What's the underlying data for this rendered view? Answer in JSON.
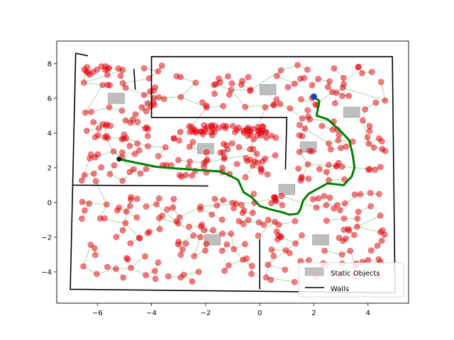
{
  "chart_data": {
    "type": "scatter",
    "title": "",
    "xlabel": "",
    "ylabel": "",
    "xlim": [
      -7.5,
      5.5
    ],
    "ylim": [
      -5.8,
      9.3
    ],
    "xticks": [
      -6,
      -4,
      -2,
      0,
      2,
      4
    ],
    "yticks": [
      -4,
      -2,
      0,
      2,
      4,
      6,
      8
    ],
    "xtick_labels": [
      "−6",
      "−4",
      "−2",
      "0",
      "2",
      "4"
    ],
    "ytick_labels": [
      "−4",
      "−2",
      "0",
      "2",
      "4",
      "6",
      "8"
    ],
    "grid": false,
    "legend": {
      "placement": "lower-right",
      "entries": [
        {
          "label": "Static Objects",
          "kind": "patch",
          "color": "#bfbfbf"
        },
        {
          "label": "Walls",
          "kind": "line",
          "color": "#000000"
        }
      ]
    },
    "walls": [
      [
        [
          -6.8,
          8.6
        ],
        [
          -7.0,
          -5.0
        ],
        [
          5.0,
          -5.2
        ],
        [
          4.9,
          8.4
        ],
        [
          -4.0,
          8.4
        ],
        [
          -4.0,
          4.9
        ],
        [
          1.0,
          4.9
        ],
        [
          0.95,
          1.9
        ]
      ],
      [
        [
          -6.8,
          8.6
        ],
        [
          -6.35,
          8.45
        ]
      ],
      [
        [
          -6.9,
          1.0
        ],
        [
          -1.9,
          0.95
        ]
      ],
      [
        [
          0.0,
          -2.1
        ],
        [
          0.0,
          -5.0
        ]
      ],
      [
        [
          -4.65,
          7.7
        ],
        [
          -4.6,
          6.5
        ]
      ]
    ],
    "static_objects": [
      {
        "x": -5.3,
        "y": 6.0,
        "w": 0.6,
        "h": 0.6
      },
      {
        "x": 0.3,
        "y": 6.5,
        "w": 0.6,
        "h": 0.6
      },
      {
        "x": -2.0,
        "y": 3.1,
        "w": 0.6,
        "h": 0.6
      },
      {
        "x": 1.8,
        "y": 3.2,
        "w": 0.6,
        "h": 0.6
      },
      {
        "x": 3.4,
        "y": 5.2,
        "w": 0.6,
        "h": 0.6
      },
      {
        "x": 1.0,
        "y": 0.75,
        "w": 0.6,
        "h": 0.6
      },
      {
        "x": -1.75,
        "y": -2.15,
        "w": 0.6,
        "h": 0.6
      },
      {
        "x": 2.25,
        "y": -2.15,
        "w": 0.6,
        "h": 0.6
      }
    ],
    "path": [
      [
        2.0,
        6.1
      ],
      [
        2.2,
        5.85
      ],
      [
        2.1,
        5.0
      ],
      [
        2.5,
        4.8
      ],
      [
        3.0,
        4.1
      ],
      [
        3.3,
        3.6
      ],
      [
        3.4,
        3.0
      ],
      [
        3.45,
        2.6
      ],
      [
        3.5,
        2.0
      ],
      [
        3.4,
        1.5
      ],
      [
        3.1,
        1.0
      ],
      [
        2.5,
        1.1
      ],
      [
        1.8,
        0.5
      ],
      [
        1.6,
        0.1
      ],
      [
        1.5,
        -0.4
      ],
      [
        1.4,
        -0.65
      ],
      [
        1.1,
        -0.7
      ],
      [
        0.8,
        -0.55
      ],
      [
        0.4,
        -0.4
      ],
      [
        0.0,
        -0.2
      ],
      [
        -0.3,
        0.3
      ],
      [
        -0.6,
        0.6
      ],
      [
        -0.8,
        1.3
      ],
      [
        -1.1,
        1.55
      ],
      [
        -1.5,
        1.8
      ],
      [
        -2.1,
        1.85
      ],
      [
        -3.0,
        1.95
      ],
      [
        -3.8,
        2.05
      ],
      [
        -4.6,
        2.3
      ],
      [
        -5.2,
        2.5
      ]
    ],
    "start": [
      -5.2,
      2.5
    ],
    "goal": [
      2.0,
      6.1
    ]
  }
}
